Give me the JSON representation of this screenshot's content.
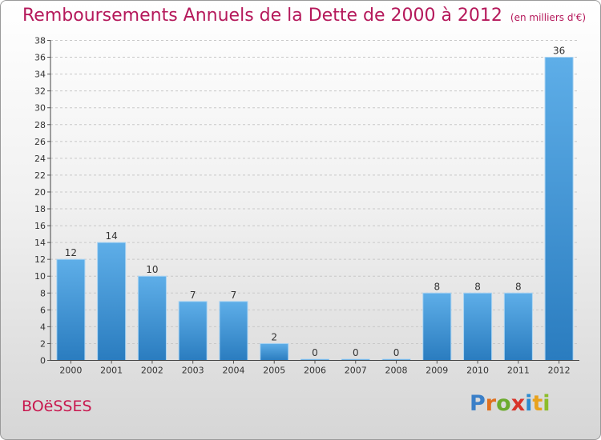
{
  "header": {
    "title": "Remboursements Annuels de la Dette de 2000 à 2012",
    "subtitle": "(en milliers d'€)"
  },
  "footer": {
    "commune": "BOëSSES",
    "logo": {
      "text": "Proxiti",
      "letters": [
        {
          "ch": "P",
          "color": "#3a7fc8"
        },
        {
          "ch": "r",
          "color": "#e0701f"
        },
        {
          "ch": "o",
          "color": "#6cab2e"
        },
        {
          "ch": "x",
          "color": "#d8342a"
        },
        {
          "ch": "i",
          "color": "#2c8bd0"
        },
        {
          "ch": "t",
          "color": "#e8a21d"
        },
        {
          "ch": "i",
          "color": "#8cbd2a"
        }
      ]
    }
  },
  "colors": {
    "title": "#b5195b",
    "bar_light": "#5eaee8",
    "bar_dark": "#2a7cbf",
    "axis_text": "#333333",
    "grid": "#c8c8c8"
  },
  "chart_data": {
    "type": "bar",
    "categories": [
      "2000",
      "2001",
      "2002",
      "2003",
      "2004",
      "2005",
      "2006",
      "2007",
      "2008",
      "2009",
      "2010",
      "2011",
      "2012"
    ],
    "values": [
      12,
      14,
      10,
      7,
      7,
      2,
      0,
      0,
      0,
      8,
      8,
      8,
      36
    ],
    "data_labels": [
      "12",
      "14",
      "10",
      "7",
      "7",
      "2",
      "0",
      "0",
      "0",
      "8",
      "8",
      "8",
      "36"
    ],
    "ylim": [
      0,
      38
    ],
    "yticks": [
      0,
      2,
      4,
      6,
      8,
      10,
      12,
      14,
      16,
      18,
      20,
      22,
      24,
      26,
      28,
      30,
      32,
      34,
      36,
      38
    ],
    "grid": true
  }
}
